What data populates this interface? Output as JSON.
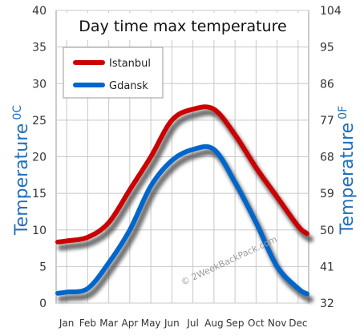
{
  "chart_data": {
    "type": "line",
    "title": "Day time max temperature",
    "ylabel_left": "Temperature",
    "ylabel_left_unit": "0C",
    "ylabel_right": "Temperature",
    "ylabel_right_unit": "0F",
    "categories": [
      "Jan",
      "Feb",
      "Mar",
      "Apr",
      "May",
      "Jun",
      "Jul",
      "Aug",
      "Sep",
      "Oct",
      "Nov",
      "Dec"
    ],
    "ylim": [
      0,
      40
    ],
    "yticks_left": [
      "0",
      "5",
      "10",
      "15",
      "20",
      "25",
      "30",
      "35",
      "40"
    ],
    "yticks_right": [
      "32",
      "41",
      "50",
      "59",
      "68",
      "77",
      "86",
      "95",
      "104"
    ],
    "grid": true,
    "legend_position": "top-left",
    "watermark": "© 2WeekBackPack.com",
    "series": [
      {
        "name": "Istanbul",
        "color": "#cc0000",
        "values": [
          8.5,
          9,
          11,
          15.5,
          20,
          25,
          26.5,
          26.5,
          23,
          18.5,
          14.5,
          10.5
        ]
      },
      {
        "name": "Gdansk",
        "color": "#0066cc",
        "values": [
          1.5,
          2,
          5.5,
          10,
          16,
          19.5,
          21,
          21,
          16.5,
          11,
          5,
          2
        ]
      }
    ]
  }
}
